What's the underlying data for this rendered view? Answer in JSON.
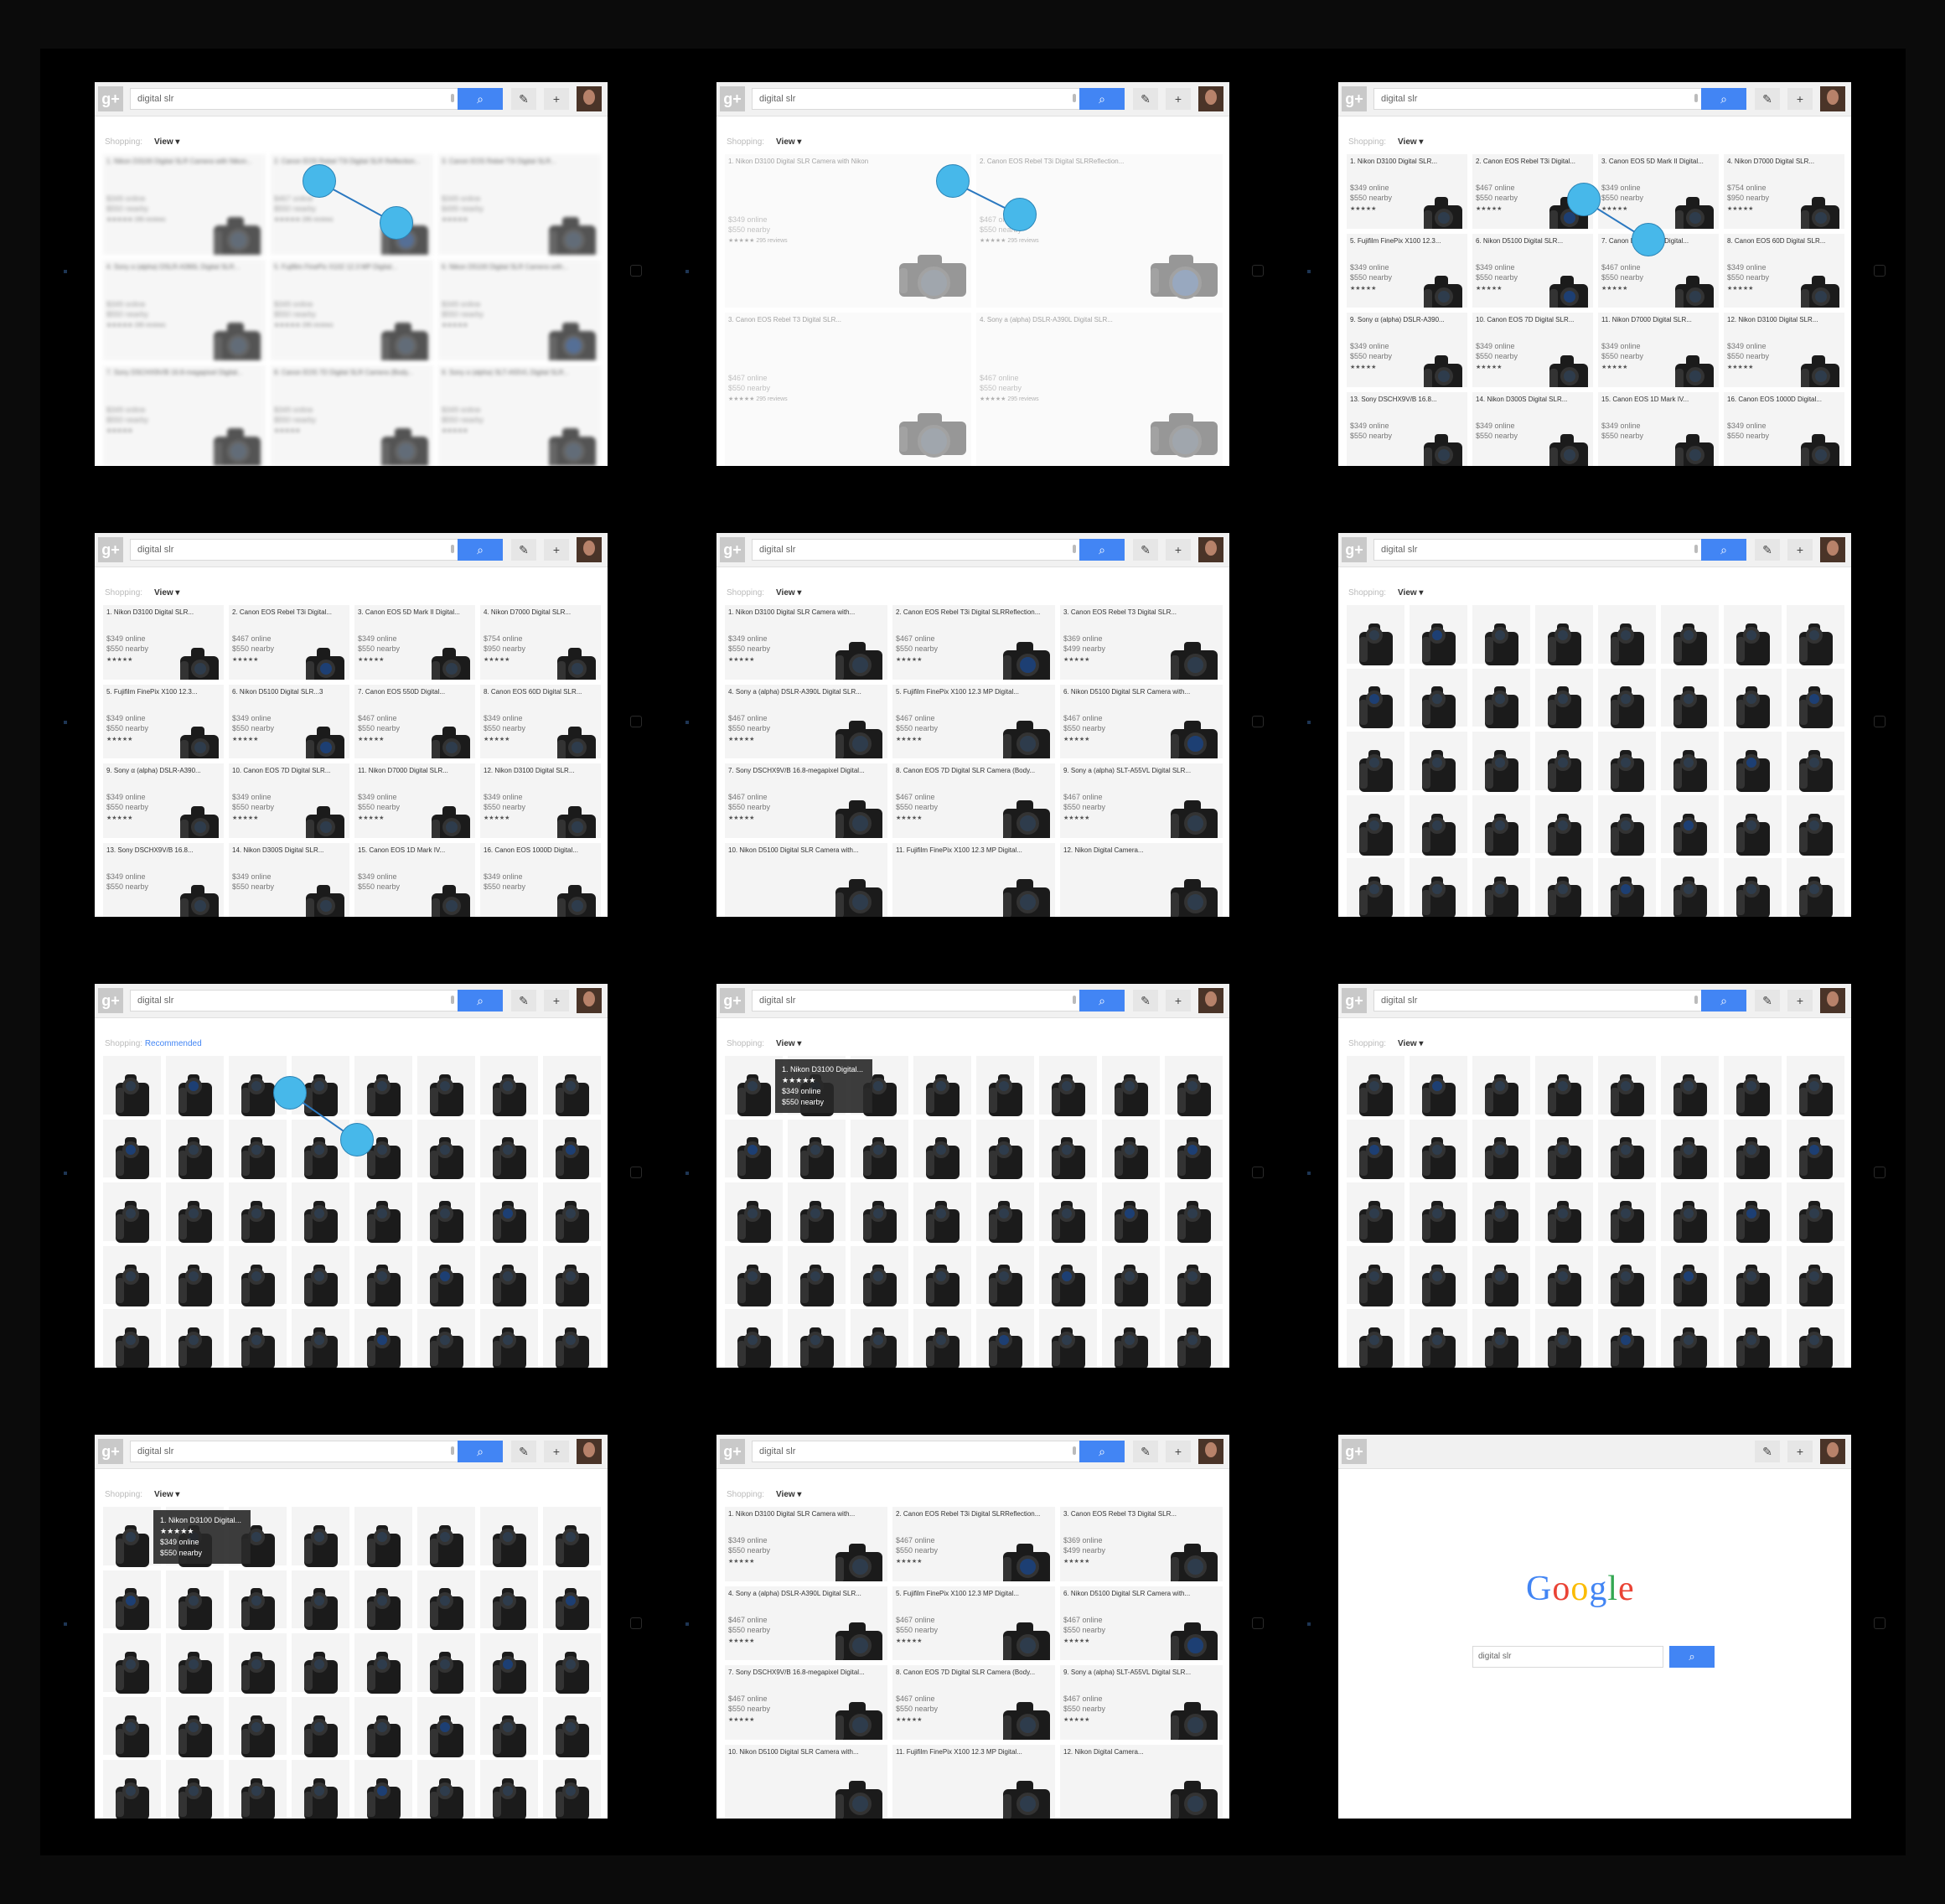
{
  "search": {
    "placeholder": "digital slr",
    "value": "digital slr",
    "button_icon": "search-icon"
  },
  "toolbar": {
    "logo": "g+",
    "pen_icon": "pencil-icon",
    "plus_icon": "+"
  },
  "subbar": {
    "shopping": "Shopping:",
    "view": "View ▾",
    "recommended": "Recommended"
  },
  "google_logo": {
    "letters": [
      "G",
      "o",
      "o",
      "g",
      "l",
      "e"
    ],
    "colors": [
      "#4285f4",
      "#ea4335",
      "#fbbc05",
      "#4285f4",
      "#34a853",
      "#ea4335"
    ]
  },
  "tooltip": {
    "title": "1. Nikon D3100 Digital...",
    "stars": "★★★★★",
    "online": "$349 online",
    "nearby": "$550 nearby"
  },
  "colors": {
    "accent": "#4285f4",
    "touch": "#47b8ea",
    "frame": "#000000"
  },
  "panels": [
    {
      "mode": "list3",
      "blur": true,
      "cols": 3,
      "items": [
        {
          "title": "1. Nikon D3100 Digital SLR Camera with Nikon...",
          "online": "$349 online",
          "nearby": "$550 nearby",
          "reviews": "★★★★★ 295 reviews"
        },
        {
          "title": "2. Canon EOS Rebel T3i Digital SLR Reflection...",
          "online": "$467 online",
          "nearby": "$550 nearby",
          "reviews": "★★★★★ 295 reviews"
        },
        {
          "title": "3. Canon EOS Rebel T3i Digital SLR...",
          "online": "$349 online",
          "nearby": "$499 nearby",
          "reviews": "★★★★★"
        },
        {
          "title": "4. Sony α (alpha) DSLR-A390L Digital SLR...",
          "online": "$349 online",
          "nearby": "$550 nearby",
          "reviews": "★★★★★ 295 reviews"
        },
        {
          "title": "5. Fujifilm FinePix X102 12.3 MP Digital...",
          "online": "$349 online",
          "nearby": "$550 nearby",
          "reviews": "★★★★★ 295 reviews"
        },
        {
          "title": "6. Nikon D5100 Digital SLR Camera with...",
          "online": "$349 online",
          "nearby": "$550 nearby",
          "reviews": "★★★★★"
        },
        {
          "title": "7. Sony DSCHX9V/B 16.8-megapixel Digital...",
          "online": "$349 online",
          "nearby": "$550 nearby",
          "reviews": "★★★★★"
        },
        {
          "title": "8. Canon EOS 7D Digital SLR Camera (Body...",
          "online": "$349 online",
          "nearby": "$550 nearby",
          "reviews": "★★★★★"
        },
        {
          "title": "9. Sony α (alpha) SLT-A55VL Digital SLR...",
          "online": "$349 online",
          "nearby": "$550 nearby",
          "reviews": "★★★★★"
        }
      ]
    },
    {
      "mode": "list2",
      "faded": true,
      "cols": 2,
      "items": [
        {
          "title": "1. Nikon D3100 Digital SLR Camera with Nikon",
          "online": "$349 online",
          "nearby": "$550 nearby",
          "reviews": "★★★★★ 295 reviews"
        },
        {
          "title": "2. Canon EOS Rebel T3i Digital SLRReflection...",
          "online": "$467 online",
          "nearby": "$550 nearby",
          "reviews": "★★★★★ 295 reviews"
        },
        {
          "title": "3. Canon EOS Rebel T3 Digital SLR...",
          "online": "$467 online",
          "nearby": "$550 nearby",
          "reviews": "★★★★★ 295 reviews"
        },
        {
          "title": "4. Sony a (alpha) DSLR-A390L Digital SLR...",
          "online": "$467 online",
          "nearby": "$550 nearby",
          "reviews": "★★★★★ 295 reviews"
        }
      ]
    },
    {
      "mode": "list4",
      "cols": 4,
      "items": [
        {
          "title": "1. Nikon D3100 Digital SLR...",
          "online": "$349 online",
          "nearby": "$550 nearby",
          "reviews": "★★★★★"
        },
        {
          "title": "2. Canon EOS Rebel T3i Digital...",
          "online": "$467 online",
          "nearby": "$550 nearby",
          "reviews": "★★★★★"
        },
        {
          "title": "3. Canon EOS 5D Mark II Digital...",
          "online": "$349 online",
          "nearby": "$550 nearby",
          "reviews": "★★★★★"
        },
        {
          "title": "4. Nikon D7000 Digital SLR...",
          "online": "$754 online",
          "nearby": "$950 nearby",
          "reviews": "★★★★★"
        },
        {
          "title": "5. Fujifilm FinePix X100 12.3...",
          "online": "$349 online",
          "nearby": "$550 nearby",
          "reviews": "★★★★★"
        },
        {
          "title": "6. Nikon D5100 Digital SLR...",
          "online": "$349 online",
          "nearby": "$550 nearby",
          "reviews": "★★★★★"
        },
        {
          "title": "7. Canon EOS 550D Digital...",
          "online": "$467 online",
          "nearby": "$550 nearby",
          "reviews": "★★★★★"
        },
        {
          "title": "8. Canon EOS 60D Digital SLR...",
          "online": "$349 online",
          "nearby": "$550 nearby",
          "reviews": "★★★★★"
        },
        {
          "title": "9. Sony α (alpha) DSLR-A390...",
          "online": "$349 online",
          "nearby": "$550 nearby",
          "reviews": "★★★★★"
        },
        {
          "title": "10. Canon EOS 7D Digital SLR...",
          "online": "$349 online",
          "nearby": "$550 nearby",
          "reviews": "★★★★★"
        },
        {
          "title": "11. Nikon D7000 Digital SLR...",
          "online": "$349 online",
          "nearby": "$550 nearby",
          "reviews": "★★★★★"
        },
        {
          "title": "12. Nikon D3100 Digital SLR...",
          "online": "$349 online",
          "nearby": "$550 nearby",
          "reviews": "★★★★★"
        },
        {
          "title": "13. Sony DSCHX9V/B 16.8...",
          "online": "$349 online",
          "nearby": "$550 nearby",
          "reviews": ""
        },
        {
          "title": "14. Nikon D300S Digital SLR...",
          "online": "$349 online",
          "nearby": "$550 nearby",
          "reviews": ""
        },
        {
          "title": "15. Canon EOS 1D Mark IV...",
          "online": "$349 online",
          "nearby": "$550 nearby",
          "reviews": ""
        },
        {
          "title": "16. Canon EOS 1000D Digital...",
          "online": "$349 online",
          "nearby": "$550 nearby",
          "reviews": ""
        }
      ]
    },
    {
      "mode": "list4",
      "cols": 4,
      "items": [
        {
          "title": "1. Nikon D3100 Digital SLR...",
          "online": "$349 online",
          "nearby": "$550 nearby",
          "reviews": "★★★★★"
        },
        {
          "title": "2. Canon EOS Rebel T3i Digital...",
          "online": "$467 online",
          "nearby": "$550 nearby",
          "reviews": "★★★★★"
        },
        {
          "title": "3. Canon EOS 5D Mark II Digital...",
          "online": "$349 online",
          "nearby": "$550 nearby",
          "reviews": "★★★★★"
        },
        {
          "title": "4. Nikon D7000 Digital SLR...",
          "online": "$754 online",
          "nearby": "$950 nearby",
          "reviews": "★★★★★"
        },
        {
          "title": "5. Fujifilm FinePix X100 12.3...",
          "online": "$349 online",
          "nearby": "$550 nearby",
          "reviews": "★★★★★"
        },
        {
          "title": "6. Nikon D5100 Digital SLR...3",
          "online": "$349 online",
          "nearby": "$550 nearby",
          "reviews": "★★★★★"
        },
        {
          "title": "7. Canon EOS 550D Digital...",
          "online": "$467 online",
          "nearby": "$550 nearby",
          "reviews": "★★★★★"
        },
        {
          "title": "8. Canon EOS 60D Digital SLR...",
          "online": "$349 online",
          "nearby": "$550 nearby",
          "reviews": "★★★★★"
        },
        {
          "title": "9. Sony α (alpha) DSLR-A390...",
          "online": "$349 online",
          "nearby": "$550 nearby",
          "reviews": "★★★★★"
        },
        {
          "title": "10. Canon EOS 7D Digital SLR...",
          "online": "$349 online",
          "nearby": "$550 nearby",
          "reviews": "★★★★★"
        },
        {
          "title": "11. Nikon D7000 Digital SLR...",
          "online": "$349 online",
          "nearby": "$550 nearby",
          "reviews": "★★★★★"
        },
        {
          "title": "12. Nikon D3100 Digital SLR...",
          "online": "$349 online",
          "nearby": "$550 nearby",
          "reviews": "★★★★★"
        },
        {
          "title": "13. Sony DSCHX9V/B 16.8...",
          "online": "$349 online",
          "nearby": "$550 nearby",
          "reviews": ""
        },
        {
          "title": "14. Nikon D300S Digital SLR...",
          "online": "$349 online",
          "nearby": "$550 nearby",
          "reviews": ""
        },
        {
          "title": "15. Canon EOS 1D Mark IV...",
          "online": "$349 online",
          "nearby": "$550 nearby",
          "reviews": ""
        },
        {
          "title": "16. Canon EOS 1000D Digital...",
          "online": "$349 online",
          "nearby": "$550 nearby",
          "reviews": ""
        }
      ]
    },
    {
      "mode": "list3",
      "cols": 3,
      "items": [
        {
          "title": "1. Nikon D3100 Digital SLR Camera with...",
          "online": "$349 online",
          "nearby": "$550 nearby",
          "reviews": "★★★★★"
        },
        {
          "title": "2. Canon EOS Rebel T3i Digital SLRReflection...",
          "online": "$467 online",
          "nearby": "$550 nearby",
          "reviews": "★★★★★"
        },
        {
          "title": "3. Canon EOS Rebel T3 Digital SLR...",
          "online": "$369 online",
          "nearby": "$499 nearby",
          "reviews": "★★★★★"
        },
        {
          "title": "4. Sony a (alpha) DSLR-A390L Digital SLR...",
          "online": "$467 online",
          "nearby": "$550 nearby",
          "reviews": "★★★★★"
        },
        {
          "title": "5. Fujifilm FinePix X100 12.3 MP Digital...",
          "online": "$467 online",
          "nearby": "$550 nearby",
          "reviews": "★★★★★"
        },
        {
          "title": "6. Nikon D5100 Digital SLR Camera with...",
          "online": "$467 online",
          "nearby": "$550 nearby",
          "reviews": "★★★★★"
        },
        {
          "title": "7. Sony DSCHX9V/B 16.8-megapixel Digital...",
          "online": "$467 online",
          "nearby": "$550 nearby",
          "reviews": "★★★★★"
        },
        {
          "title": "8. Canon EOS 7D Digital SLR Camera (Body...",
          "online": "$467 online",
          "nearby": "$550 nearby",
          "reviews": "★★★★★"
        },
        {
          "title": "9. Sony a (alpha) SLT-A55VL Digital SLR...",
          "online": "$467 online",
          "nearby": "$550 nearby",
          "reviews": "★★★★★"
        },
        {
          "title": "10. Nikon D5100 Digital SLR Camera with...",
          "online": "",
          "nearby": "",
          "reviews": ""
        },
        {
          "title": "11. Fujifilm FinePix X100 12.3 MP Digital...",
          "online": "",
          "nearby": "",
          "reviews": ""
        },
        {
          "title": "12. Nikon Digital Camera...",
          "online": "",
          "nearby": "",
          "reviews": ""
        }
      ]
    },
    {
      "mode": "grid",
      "cols": 8,
      "rows": 5,
      "sub": "view"
    },
    {
      "mode": "grid",
      "cols": 8,
      "rows": 5,
      "sub": "recommended"
    },
    {
      "mode": "grid",
      "cols": 8,
      "rows": 5,
      "sub": "view",
      "tooltip": true
    },
    {
      "mode": "grid",
      "cols": 8,
      "rows": 5,
      "sub": "view"
    },
    {
      "mode": "grid",
      "cols": 8,
      "rows": 5,
      "sub": "view",
      "tooltip": true
    },
    {
      "mode": "list3",
      "cols": 3,
      "items": [
        {
          "title": "1. Nikon D3100 Digital SLR Camera with...",
          "online": "$349 online",
          "nearby": "$550 nearby",
          "reviews": "★★★★★"
        },
        {
          "title": "2. Canon EOS Rebel T3i Digital SLRReflection...",
          "online": "$467 online",
          "nearby": "$550 nearby",
          "reviews": "★★★★★"
        },
        {
          "title": "3. Canon EOS Rebel T3 Digital SLR...",
          "online": "$369 online",
          "nearby": "$499 nearby",
          "reviews": "★★★★★"
        },
        {
          "title": "4. Sony a (alpha) DSLR-A390L Digital SLR...",
          "online": "$467 online",
          "nearby": "$550 nearby",
          "reviews": "★★★★★"
        },
        {
          "title": "5. Fujifilm FinePix X100 12.3 MP Digital...",
          "online": "$467 online",
          "nearby": "$550 nearby",
          "reviews": "★★★★★"
        },
        {
          "title": "6. Nikon D5100 Digital SLR Camera with...",
          "online": "$467 online",
          "nearby": "$550 nearby",
          "reviews": "★★★★★"
        },
        {
          "title": "7. Sony DSCHX9V/B 16.8-megapixel Digital...",
          "online": "$467 online",
          "nearby": "$550 nearby",
          "reviews": "★★★★★"
        },
        {
          "title": "8. Canon EOS 7D Digital SLR Camera (Body...",
          "online": "$467 online",
          "nearby": "$550 nearby",
          "reviews": "★★★★★"
        },
        {
          "title": "9. Sony a (alpha) SLT-A55VL Digital SLR...",
          "online": "$467 online",
          "nearby": "$550 nearby",
          "reviews": "★★★★★"
        },
        {
          "title": "10. Nikon D5100 Digital SLR Camera with...",
          "online": "",
          "nearby": "",
          "reviews": ""
        },
        {
          "title": "11. Fujifilm FinePix X100 12.3 MP Digital...",
          "online": "",
          "nearby": "",
          "reviews": ""
        },
        {
          "title": "12. Nikon Digital Camera...",
          "online": "",
          "nearby": "",
          "reviews": ""
        }
      ]
    },
    {
      "mode": "home"
    }
  ]
}
